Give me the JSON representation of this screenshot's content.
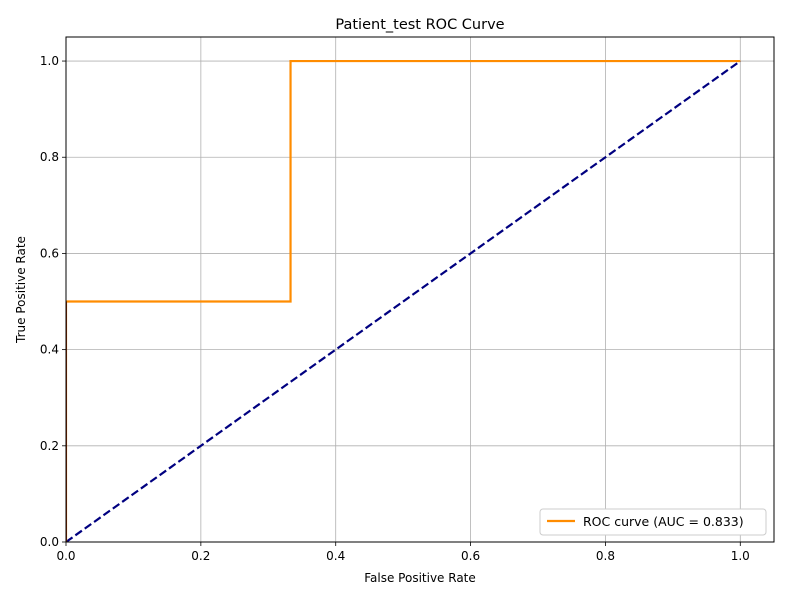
{
  "chart_data": {
    "type": "line",
    "title": "Patient_test ROC Curve",
    "xlabel": "False Positive Rate",
    "ylabel": "True Positive Rate",
    "xlim": [
      0.0,
      1.05
    ],
    "ylim": [
      0.0,
      1.05
    ],
    "x_ticks": [
      0.0,
      0.2,
      0.4,
      0.6,
      0.8,
      1.0
    ],
    "y_ticks": [
      0.0,
      0.2,
      0.4,
      0.6,
      0.8,
      1.0
    ],
    "x_tick_labels": [
      "0.0",
      "0.2",
      "0.4",
      "0.6",
      "0.8",
      "1.0"
    ],
    "y_tick_labels": [
      "0.0",
      "0.2",
      "0.4",
      "0.6",
      "0.8",
      "1.0"
    ],
    "grid": true,
    "legend_position": "lower-right",
    "series": [
      {
        "name": "ROC curve (AUC = 0.833)",
        "color": "#ff8c00",
        "style": "solid",
        "x": [
          0.0,
          0.0,
          0.333,
          0.333,
          1.0
        ],
        "y": [
          0.0,
          0.5,
          0.5,
          1.0,
          1.0
        ]
      },
      {
        "color": "#000080",
        "style": "dashed",
        "x": [
          0.0,
          1.0
        ],
        "y": [
          0.0,
          1.0
        ]
      }
    ]
  }
}
